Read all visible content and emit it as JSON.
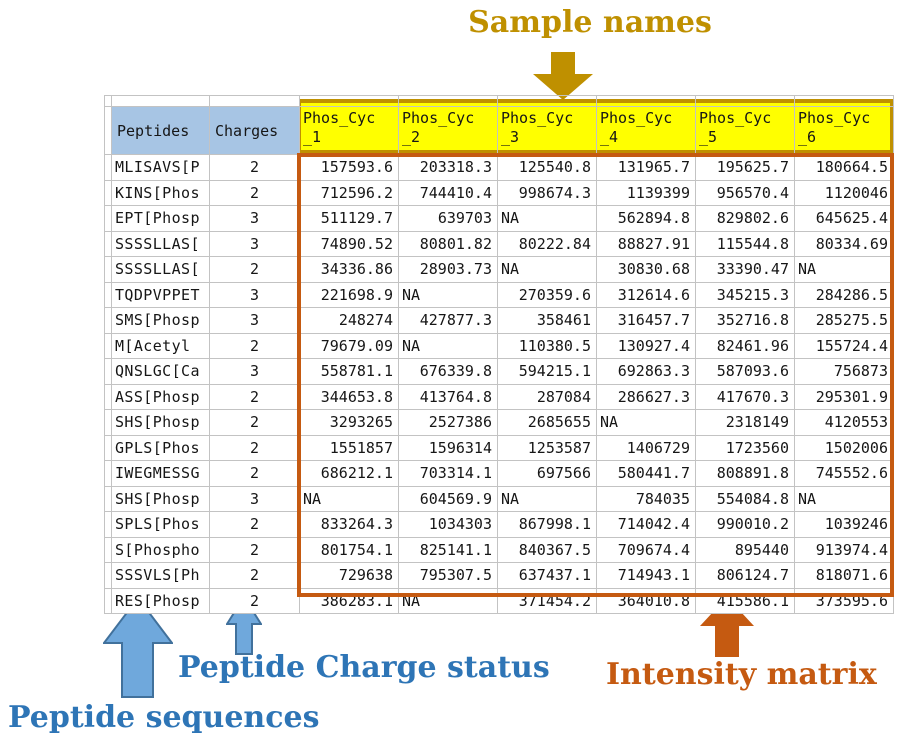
{
  "annotations": {
    "sample_names": {
      "label": "Sample names",
      "color": "#BF9000"
    },
    "peptide_sequences": {
      "label": "Peptide sequences",
      "color": "#2E75B6"
    },
    "peptide_charge_status": {
      "label": "Peptide Charge status",
      "color": "#2E75B6"
    },
    "intensity_matrix": {
      "label": "Intensity matrix",
      "color": "#C55A11"
    }
  },
  "colors": {
    "header_fill_blue": "#A7C5E4",
    "sample_header_fill": "#FFFF00",
    "sample_header_border": "#BF9000",
    "intensity_border": "#C55A11",
    "arrow_blue_fill": "#6FA8DC",
    "arrow_blue_stroke": "#41719C",
    "gridline": "#C3C3C3"
  },
  "table": {
    "peptides_header": "Peptides",
    "charges_header": "Charges",
    "sample_headers": [
      {
        "line1": "Phos_Cyc",
        "line2": "_1"
      },
      {
        "line1": "Phos_Cyc",
        "line2": "_2"
      },
      {
        "line1": "Phos_Cyc",
        "line2": "_3"
      },
      {
        "line1": "Phos_Cyc",
        "line2": "_4"
      },
      {
        "line1": "Phos_Cyc",
        "line2": "_5"
      },
      {
        "line1": "Phos_Cyc",
        "line2": "_6"
      }
    ],
    "rows": [
      {
        "peptide": "MLISAVS[P",
        "charge": "2",
        "values": [
          "157593.6",
          "203318.3",
          "125540.8",
          "131965.7",
          "195625.7",
          "180664.5"
        ]
      },
      {
        "peptide": "KINS[Phos",
        "charge": "2",
        "values": [
          "712596.2",
          "744410.4",
          "998674.3",
          "1139399",
          "956570.4",
          "1120046"
        ]
      },
      {
        "peptide": "EPT[Phosp",
        "charge": "3",
        "values": [
          "511129.7",
          "639703",
          "NA",
          "562894.8",
          "829802.6",
          "645625.4"
        ]
      },
      {
        "peptide": "SSSSLLAS[",
        "charge": "3",
        "values": [
          "74890.52",
          "80801.82",
          "80222.84",
          "88827.91",
          "115544.8",
          "80334.69"
        ]
      },
      {
        "peptide": "SSSSLLAS[",
        "charge": "2",
        "values": [
          "34336.86",
          "28903.73",
          "NA",
          "30830.68",
          "33390.47",
          "NA"
        ]
      },
      {
        "peptide": "TQDPVPPET",
        "charge": "3",
        "values": [
          "221698.9",
          "NA",
          "270359.6",
          "312614.6",
          "345215.3",
          "284286.5"
        ]
      },
      {
        "peptide": "SMS[Phosp",
        "charge": "3",
        "values": [
          "248274",
          "427877.3",
          "358461",
          "316457.7",
          "352716.8",
          "285275.5"
        ]
      },
      {
        "peptide": "M[Acetyl",
        "charge": "2",
        "values": [
          "79679.09",
          "NA",
          "110380.5",
          "130927.4",
          "82461.96",
          "155724.4"
        ]
      },
      {
        "peptide": "QNSLGC[Ca",
        "charge": "3",
        "values": [
          "558781.1",
          "676339.8",
          "594215.1",
          "692863.3",
          "587093.6",
          "756873"
        ]
      },
      {
        "peptide": "ASS[Phosp",
        "charge": "2",
        "values": [
          "344653.8",
          "413764.8",
          "287084",
          "286627.3",
          "417670.3",
          "295301.9"
        ]
      },
      {
        "peptide": "SHS[Phosp",
        "charge": "2",
        "values": [
          "3293265",
          "2527386",
          "2685655",
          "NA",
          "2318149",
          "4120553"
        ]
      },
      {
        "peptide": "GPLS[Phos",
        "charge": "2",
        "values": [
          "1551857",
          "1596314",
          "1253587",
          "1406729",
          "1723560",
          "1502006"
        ]
      },
      {
        "peptide": "IWEGMESSG",
        "charge": "2",
        "values": [
          "686212.1",
          "703314.1",
          "697566",
          "580441.7",
          "808891.8",
          "745552.6"
        ]
      },
      {
        "peptide": "SHS[Phosp",
        "charge": "3",
        "values": [
          "NA",
          "604569.9",
          "NA",
          "784035",
          "554084.8",
          "NA"
        ]
      },
      {
        "peptide": "SPLS[Phos",
        "charge": "2",
        "values": [
          "833264.3",
          "1034303",
          "867998.1",
          "714042.4",
          "990010.2",
          "1039246"
        ]
      },
      {
        "peptide": "S[Phospho",
        "charge": "2",
        "values": [
          "801754.1",
          "825141.1",
          "840367.5",
          "709674.4",
          "895440",
          "913974.4"
        ]
      },
      {
        "peptide": "SSSVLS[Ph",
        "charge": "2",
        "values": [
          "729638",
          "795307.5",
          "637437.1",
          "714943.1",
          "806124.7",
          "818071.6"
        ]
      },
      {
        "peptide": "RES[Phosp",
        "charge": "2",
        "values": [
          "386283.1",
          "NA",
          "371454.2",
          "364010.8",
          "415586.1",
          "373595.6"
        ]
      }
    ]
  }
}
